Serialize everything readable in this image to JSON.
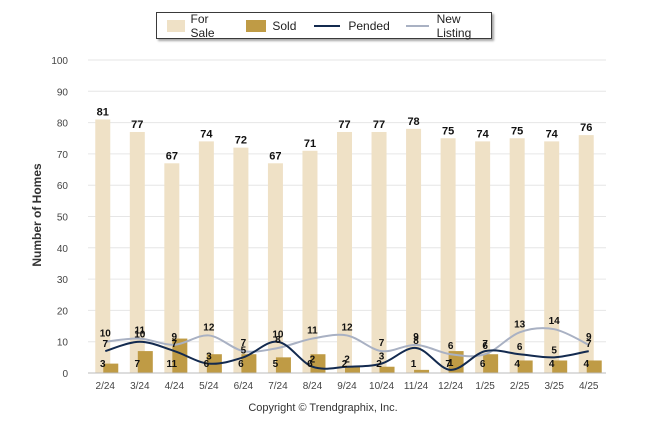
{
  "legend": {
    "for_sale": "For Sale",
    "sold": "Sold",
    "pended": "Pended",
    "new_listing": "New Listing"
  },
  "copyright": "Copyright © Trendgraphix, Inc.",
  "colors": {
    "for_sale": "#efe1c6",
    "sold": "#bf9b45",
    "pended": "#132a4f",
    "new_listing": "#a9b1c3",
    "grid": "#e6e6e6"
  },
  "chart_data": {
    "type": "bar",
    "title": "",
    "xlabel": "",
    "ylabel": "Number of Homes",
    "ylim": [
      0,
      100
    ],
    "yticks": [
      0,
      10,
      20,
      30,
      40,
      50,
      60,
      70,
      80,
      90,
      100
    ],
    "grid": true,
    "legend_position": "top",
    "categories": [
      "2/24",
      "3/24",
      "4/24",
      "5/24",
      "6/24",
      "7/24",
      "8/24",
      "9/24",
      "10/24",
      "11/24",
      "12/24",
      "1/25",
      "2/25",
      "3/25",
      "4/25"
    ],
    "series": [
      {
        "name": "For Sale",
        "kind": "bar",
        "values": [
          81,
          77,
          67,
          74,
          72,
          67,
          71,
          77,
          77,
          78,
          75,
          74,
          75,
          74,
          76
        ]
      },
      {
        "name": "Sold",
        "kind": "bar",
        "values": [
          3,
          7,
          11,
          6,
          6,
          5,
          6,
          2,
          2,
          1,
          7,
          6,
          4,
          4,
          4
        ]
      },
      {
        "name": "Pended",
        "kind": "line",
        "values": [
          7,
          10,
          7,
          3,
          5,
          10,
          2,
          2,
          3,
          8,
          1,
          7,
          6,
          5,
          7
        ]
      },
      {
        "name": "New Listing",
        "kind": "line",
        "values": [
          10,
          11,
          9,
          12,
          7,
          8,
          11,
          12,
          7,
          9,
          6,
          6,
          13,
          14,
          9
        ]
      }
    ]
  }
}
